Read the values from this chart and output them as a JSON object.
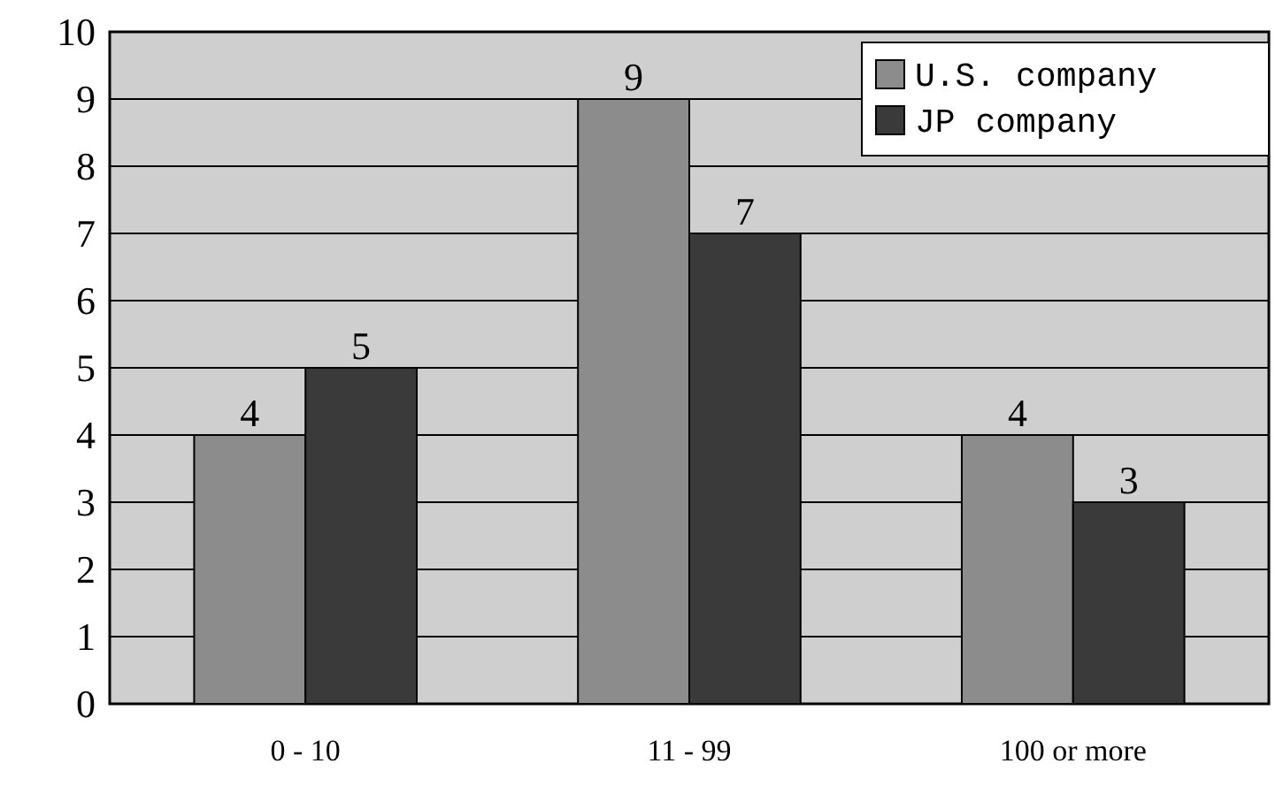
{
  "chart_data": {
    "type": "bar",
    "categories": [
      "0 - 10",
      "11 - 99",
      "100 or more"
    ],
    "series": [
      {
        "name": "U.S. company",
        "color": "#8c8c8c",
        "values": [
          4,
          9,
          4
        ]
      },
      {
        "name": "JP company",
        "color": "#3a3a3a",
        "values": [
          5,
          7,
          3
        ]
      }
    ],
    "ylim": [
      0,
      10
    ],
    "yticks": [
      0,
      1,
      2,
      3,
      4,
      5,
      6,
      7,
      8,
      9,
      10
    ],
    "grid": "y",
    "legend": "top right",
    "data_labels": true
  }
}
